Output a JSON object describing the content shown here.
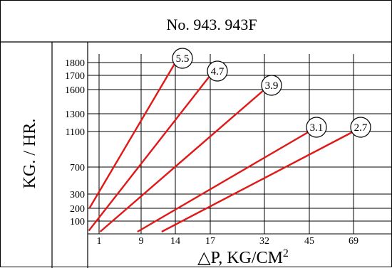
{
  "chart_data": {
    "type": "line",
    "title": "No. 943. 943F",
    "ylabel": "KG. / HR.",
    "xlabel_text": "△P,  KG/CM",
    "xlabel_sup": "2",
    "x_ticks": [
      1,
      9,
      14,
      17,
      32,
      45,
      69
    ],
    "y_ticks": [
      100,
      200,
      300,
      700,
      1100,
      1300,
      1600,
      1700,
      1800
    ],
    "grid": true,
    "colors": {
      "series": "#e01818",
      "grid": "#000000"
    },
    "series": [
      {
        "label": "5.5",
        "points": [
          [
            0.15,
            200
          ],
          [
            14,
            1800
          ]
        ]
      },
      {
        "label": "4.7",
        "points": [
          [
            0.1,
            10
          ],
          [
            17,
            1700
          ]
        ]
      },
      {
        "label": "3.9",
        "points": [
          [
            1.2,
            0
          ],
          [
            32,
            1600
          ]
        ]
      },
      {
        "label": "3.1",
        "points": [
          [
            8.3,
            0
          ],
          [
            45,
            1100
          ]
        ]
      },
      {
        "label": "2.7",
        "points": [
          [
            12,
            0
          ],
          [
            69,
            1100
          ]
        ]
      }
    ]
  }
}
